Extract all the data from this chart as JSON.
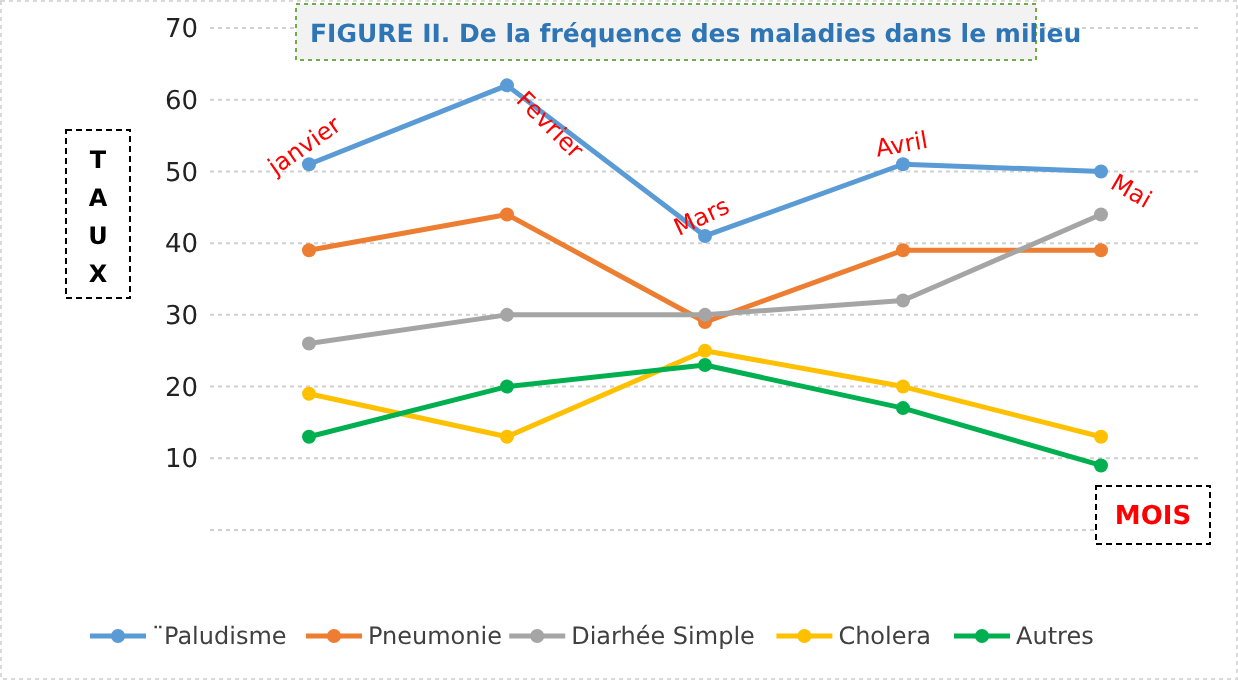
{
  "chart_data": {
    "type": "line",
    "title": "FIGURE II. De la fréquence des maladies dans le milieu",
    "ylabel": "TAUX",
    "xlabel": "MOIS",
    "categories": [
      null,
      null,
      null,
      null,
      null
    ],
    "series": [
      {
        "name": "¨Paludisme",
        "color": "#5b9bd5",
        "values": [
          51,
          62,
          41,
          51,
          50
        ]
      },
      {
        "name": "Pneumonie",
        "color": "#ed7d31",
        "values": [
          39,
          44,
          29,
          39,
          39
        ]
      },
      {
        "name": "Diarhée Simple",
        "color": "#a5a5a5",
        "values": [
          26,
          30,
          30,
          32,
          44
        ]
      },
      {
        "name": "Cholera",
        "color": "#ffc000",
        "values": [
          19,
          13,
          25,
          20,
          13
        ]
      },
      {
        "name": "Autres",
        "color": "#00b050",
        "values": [
          13,
          20,
          23,
          17,
          9
        ]
      }
    ],
    "annotations": [
      {
        "text": "janvier",
        "y": 51
      },
      "Fevrier",
      {
        "text": "Mars",
        "y": 41
      },
      {
        "text": "Avril",
        "y": 51
      },
      "Mai"
    ],
    "ylim": [
      0,
      70
    ],
    "yticks": [
      {
        "value": 0,
        "label": null
      },
      10,
      20,
      30,
      40,
      50,
      60,
      70
    ],
    "grid": "y",
    "legend": "bottom",
    "marker": "circle",
    "line_style": "solid"
  }
}
